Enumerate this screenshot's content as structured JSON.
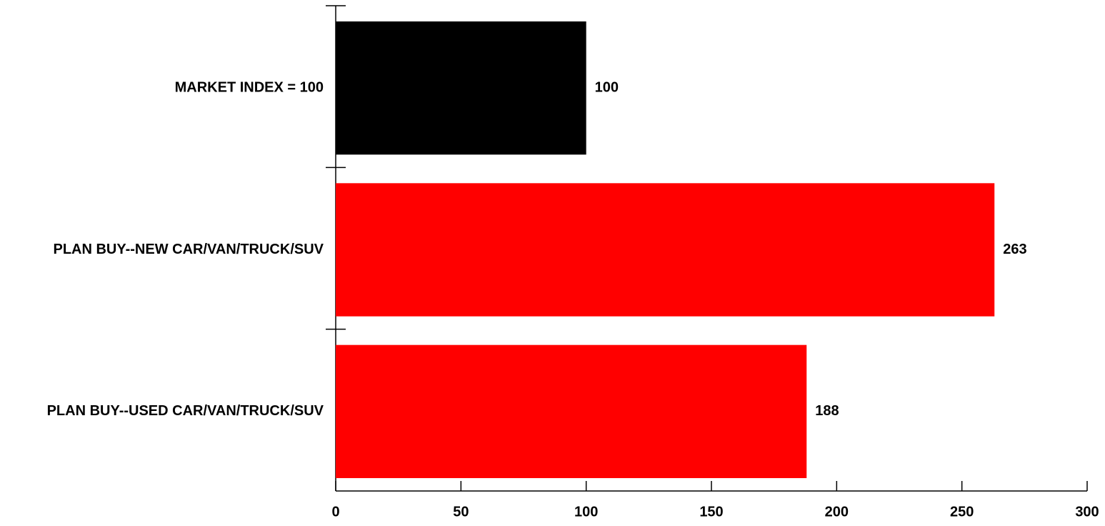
{
  "chart_data": {
    "type": "bar",
    "orientation": "horizontal",
    "categories": [
      "MARKET INDEX = 100",
      "PLAN BUY--NEW CAR/VAN/TRUCK/SUV",
      "PLAN BUY--USED CAR/VAN/TRUCK/SUV"
    ],
    "values": [
      100,
      263,
      188
    ],
    "value_labels": [
      "100",
      "263",
      "188"
    ],
    "bar_colors": [
      "#000000",
      "#ff0000",
      "#ff0000"
    ],
    "x_ticks": [
      "0",
      "50",
      "100",
      "150",
      "200",
      "250",
      "300"
    ],
    "xlim": [
      0,
      300
    ],
    "title": "",
    "xlabel": "",
    "ylabel": "",
    "grid": false,
    "legend": "none"
  }
}
